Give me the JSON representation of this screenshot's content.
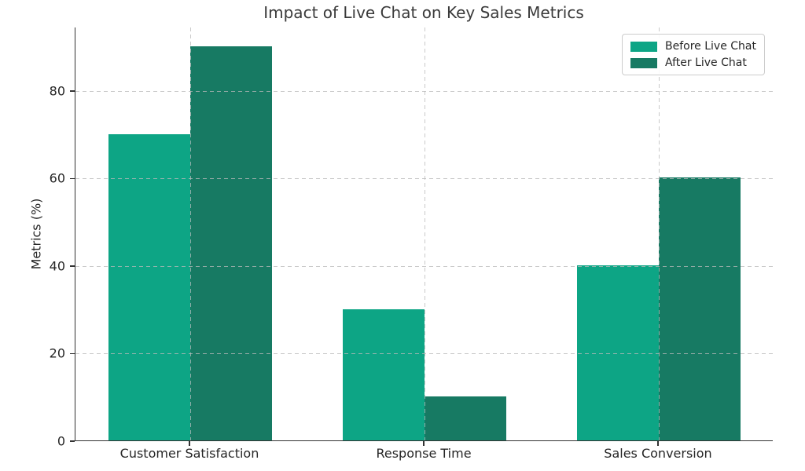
{
  "chart_data": {
    "type": "bar",
    "title": "Impact of Live Chat on Key Sales Metrics",
    "xlabel": "",
    "ylabel": "Metrics (%)",
    "categories": [
      "Customer Satisfaction",
      "Response Time",
      "Sales Conversion"
    ],
    "series": [
      {
        "name": "Before Live Chat",
        "values": [
          70,
          30,
          40
        ],
        "color": "#0da585"
      },
      {
        "name": "After Live Chat",
        "values": [
          90,
          10,
          60
        ],
        "color": "#177a63"
      }
    ],
    "yticks": [
      0,
      20,
      40,
      60,
      80
    ],
    "ylim": [
      0,
      94.5
    ],
    "xlim": [
      -0.49,
      2.49
    ],
    "bar_width_units": 0.35,
    "grid": {
      "visible": true,
      "style": "dashed",
      "axes": "both",
      "color": "#b9b9b9",
      "above_bars": true
    },
    "legend": {
      "position": "upper right",
      "border_color": "#cccccc"
    },
    "spine_color": "#333333",
    "title_color": "#3a3a3a",
    "tick_color": "#262626",
    "background_color": "#ffffff"
  }
}
